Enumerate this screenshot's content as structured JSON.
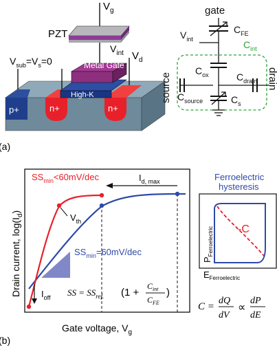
{
  "panel_a": {
    "label": "(a)",
    "device": {
      "pzt": "PZT",
      "vg": "V",
      "vg_sub": "g",
      "vint": "V",
      "vint_sub": "int",
      "vd": "V",
      "vd_sub": "d",
      "vsub": "V",
      "vsub_sub": "sub",
      "vs_eq": "=V",
      "vs_sub": "s",
      "vs_zero": "=0",
      "metal_gate": "Metal Gate",
      "high_k": "High-K",
      "p_plus": "p+",
      "n_plus_left": "n+",
      "n_plus_right": "n+"
    },
    "circuit": {
      "gate": "gate",
      "vint": "V",
      "vint_sub": "int",
      "cfe": "C",
      "cfe_sub": "FE",
      "cint": "C",
      "cint_sub": "int",
      "cox": "C",
      "cox_sub": "ox",
      "cdrain": "C",
      "cdrain_sub": "drain",
      "csource": "C",
      "csource_sub": "source",
      "cs": "C",
      "cs_sub": "s",
      "source": "source",
      "drain": "drain"
    }
  },
  "panel_b": {
    "label": "(b)",
    "ylabel": "Drain current, log(I",
    "ylabel_sub": "d",
    "ylabel_end": ")",
    "xlabel": "Gate voltage, V",
    "xlabel_sub": "g",
    "ss_red": "SS",
    "ss_red_sub": "min",
    "ss_red_val": "<60mV/dec",
    "ss_blue": "SS",
    "ss_blue_sub": "min",
    "ss_blue_val": "=60mV/dec",
    "idmax": "I",
    "idmax_sub": "d, max",
    "vth": "V",
    "vth_sub": "th",
    "ioff": "I",
    "ioff_sub": "off",
    "formula_ss": "SS = SS",
    "formula_ref": "ref.",
    "formula_paren": "(1 +",
    "formula_cint": "C",
    "formula_cint_sub": "int",
    "formula_cfe": "C",
    "formula_cfe_sub": "FE",
    "hysteresis_title_1": "Ferroelectric",
    "hysteresis_title_2": "hysteresis",
    "neg_c": "-C",
    "p_axis": "P",
    "p_axis_sub": "Ferroelectric",
    "e_axis": "E",
    "e_axis_sub": "Ferroelectric",
    "formula_c": "C =",
    "formula_dq": "dQ",
    "formula_dv": "dV",
    "formula_prop": "∝",
    "formula_dp": "dP",
    "formula_de": "dE"
  },
  "colors": {
    "red": "#e8202a",
    "blue": "#2e4aa8",
    "purple": "#8a2a7a",
    "metal": "#8e2f7e",
    "highk": "#1f3a8a",
    "green": "#2aa33a",
    "slab": "#6f8b9c",
    "triangle": "#8088c8"
  }
}
